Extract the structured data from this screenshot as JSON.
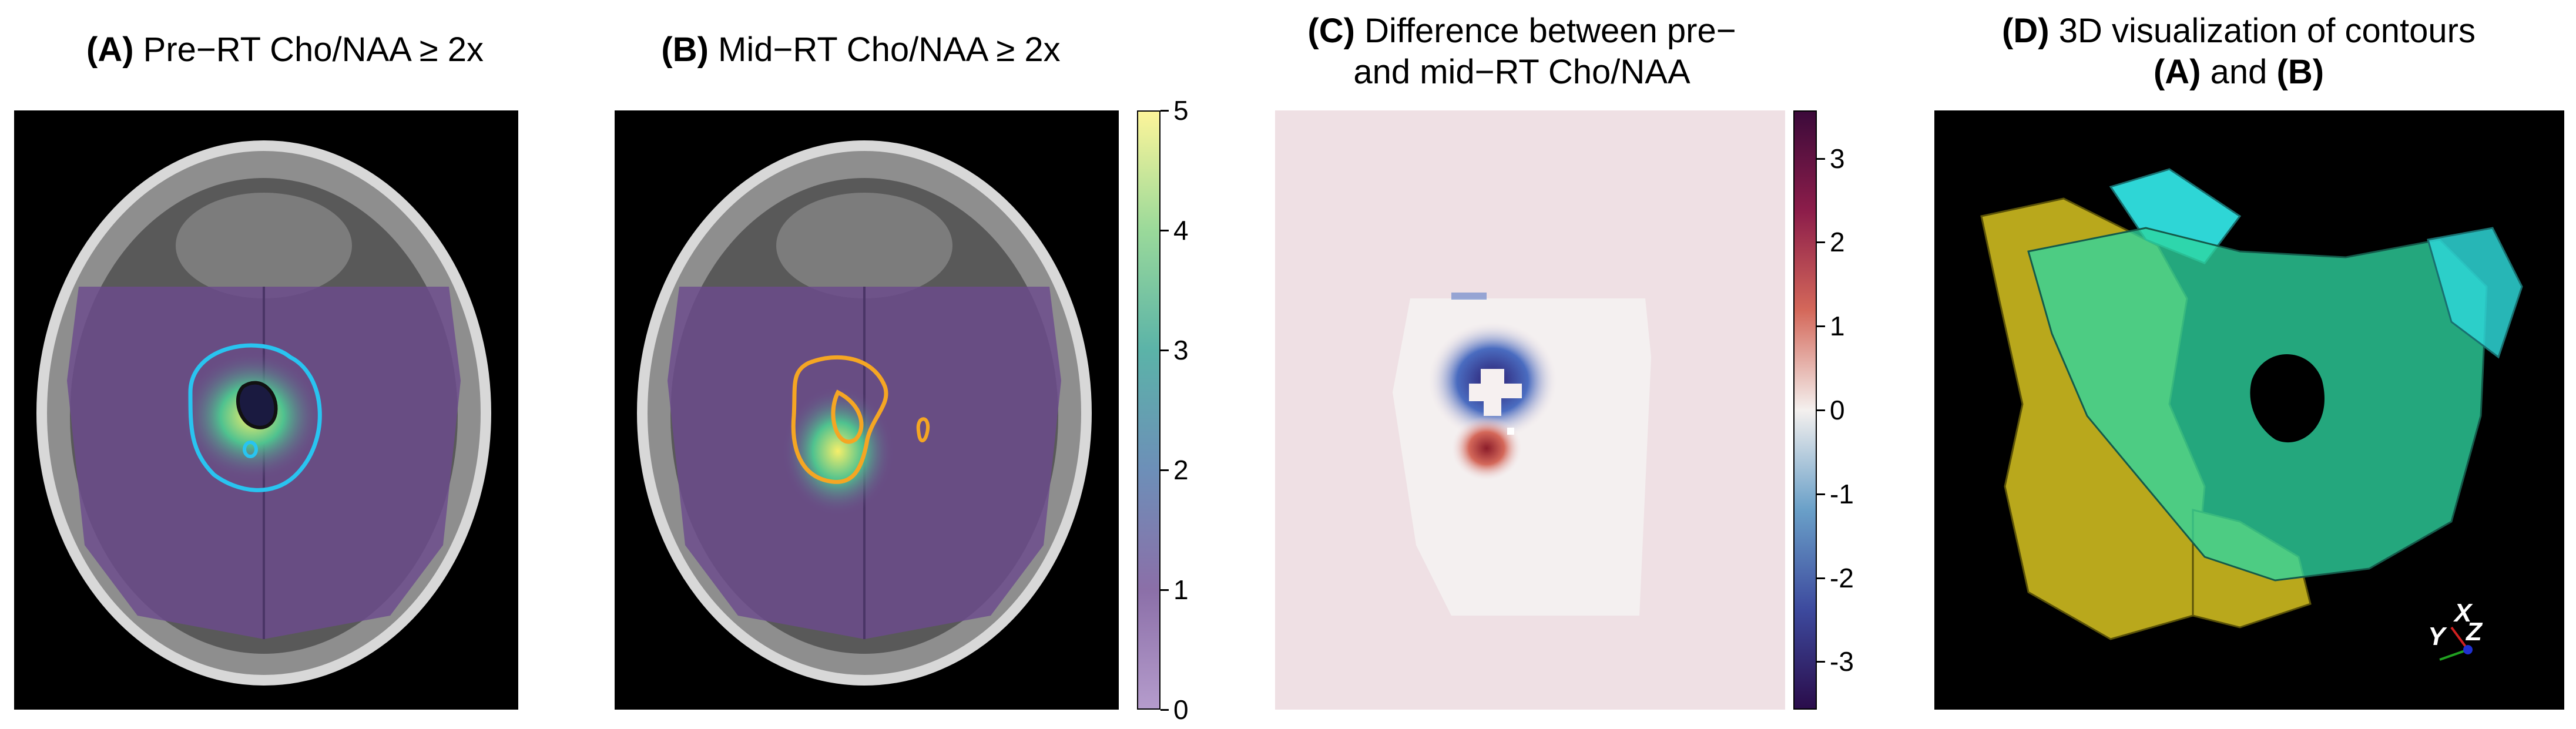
{
  "panels": {
    "a": {
      "letter": "(A)",
      "title": "Pre−RT Cho/NAA ≥ 2x"
    },
    "b": {
      "letter": "(B)",
      "title": "Mid−RT Cho/NAA ≥ 2x"
    },
    "c": {
      "letter": "(C)",
      "title_line1": "Difference between pre−",
      "title_line2": "and mid−RT Cho/NAA"
    },
    "d": {
      "letter": "(D)",
      "title_line1": "3D visualization of contours",
      "letter_a": "(A)",
      "and_word": "and",
      "letter_b": "(B)"
    }
  },
  "colorbar_ab": {
    "ticks": [
      "5",
      "4",
      "3",
      "2",
      "1",
      "0"
    ],
    "colors": [
      "#fdf59a",
      "#9ad99a",
      "#5bb3a8",
      "#6d8fb8",
      "#8b6fa8",
      "#b59ccc"
    ]
  },
  "colorbar_c": {
    "ticks": [
      "3",
      "2",
      "1",
      "0",
      "-1",
      "-2",
      "-3"
    ],
    "colors": [
      "#3b0a3a",
      "#8c1d4a",
      "#d4685a",
      "#f4f0ee",
      "#6aa0c8",
      "#3d4a9e",
      "#2a0c4a"
    ]
  },
  "axes3d": {
    "x": "X",
    "y": "Y",
    "z": "Z"
  },
  "colors": {
    "contour_pre": "#29c4f0",
    "contour_mid": "#f5a623",
    "overlay": "#6b4a8c",
    "mesh_yellow": "#b9a81c",
    "mesh_cyan": "#2ed6d6",
    "bg_c": "#efe0e4"
  }
}
